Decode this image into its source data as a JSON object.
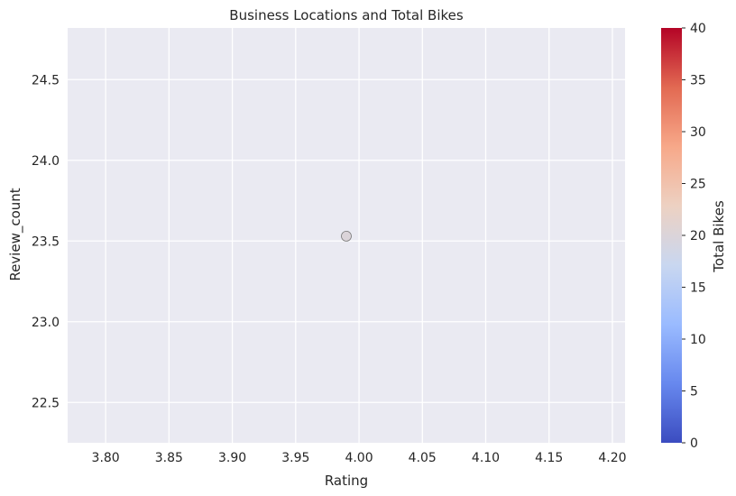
{
  "chart_data": {
    "type": "scatter",
    "title": "Business Locations and Total Bikes",
    "xlabel": "Rating",
    "ylabel": "Review_count",
    "xlim": [
      3.77,
      4.21
    ],
    "ylim": [
      22.25,
      24.82
    ],
    "xticks": [
      3.8,
      3.85,
      3.9,
      3.95,
      4.0,
      4.05,
      4.1,
      4.15,
      4.2
    ],
    "xtick_labels": [
      "3.80",
      "3.85",
      "3.90",
      "3.95",
      "4.00",
      "4.05",
      "4.10",
      "4.15",
      "4.20"
    ],
    "yticks": [
      22.5,
      23.0,
      23.5,
      24.0,
      24.5
    ],
    "ytick_labels": [
      "22.5",
      "23.0",
      "23.5",
      "24.0",
      "24.5"
    ],
    "points": [
      {
        "x": 3.99,
        "y": 23.53,
        "total_bikes": 20
      }
    ],
    "grid": true,
    "colorbar": {
      "label": "Total Bikes",
      "min": 0,
      "max": 40,
      "ticks": [
        0,
        5,
        10,
        15,
        20,
        25,
        30,
        35,
        40
      ],
      "tick_labels": [
        "0",
        "5",
        "10",
        "15",
        "20",
        "25",
        "30",
        "35",
        "40"
      ],
      "colormap": "coolwarm",
      "colors": [
        "#3b4cc0",
        "#6788ee",
        "#9abbff",
        "#c9d7f0",
        "#edd1c2",
        "#f7a889",
        "#e26952",
        "#b40426"
      ]
    },
    "colors": {
      "plot_background": "#eaeaf2",
      "grid": "#ffffff",
      "point_edge": "#777777"
    }
  }
}
